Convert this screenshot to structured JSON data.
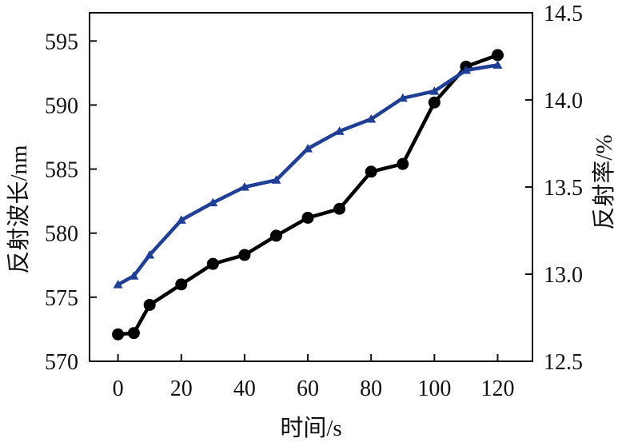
{
  "chart_data": {
    "type": "line",
    "title": "",
    "xlabel": "时间/s",
    "ylabel_left": "反射波长/nm",
    "ylabel_right": "反射率/%",
    "x_ticks": [
      0,
      20,
      40,
      60,
      80,
      100,
      120
    ],
    "y_left_ticks": [
      570,
      575,
      580,
      585,
      590,
      595
    ],
    "y_right_ticks": [
      "12.5",
      "13.0",
      "13.5",
      "14.0",
      "14.5"
    ],
    "xlim": [
      -9,
      131
    ],
    "y_left_lim": [
      570,
      597.2
    ],
    "y_right_lim": [
      12.5,
      14.5
    ],
    "grid": false,
    "series": [
      {
        "axis": "left",
        "marker": "circle",
        "color": "#000000",
        "x": [
          0,
          5,
          10,
          20,
          30,
          40,
          50,
          60,
          70,
          80,
          90,
          100,
          110,
          120
        ],
        "y": [
          572.1,
          572.2,
          574.4,
          576.0,
          577.6,
          578.3,
          579.8,
          581.2,
          581.9,
          584.8,
          585.4,
          590.2,
          593.0,
          593.9
        ]
      },
      {
        "axis": "right",
        "marker": "triangle",
        "color": "#1f3f97",
        "x": [
          0,
          5,
          10,
          20,
          30,
          40,
          50,
          60,
          70,
          80,
          90,
          100,
          110,
          120
        ],
        "y": [
          12.94,
          12.99,
          13.11,
          13.31,
          13.41,
          13.5,
          13.54,
          13.72,
          13.82,
          13.89,
          14.01,
          14.05,
          14.17,
          14.2
        ]
      }
    ]
  }
}
